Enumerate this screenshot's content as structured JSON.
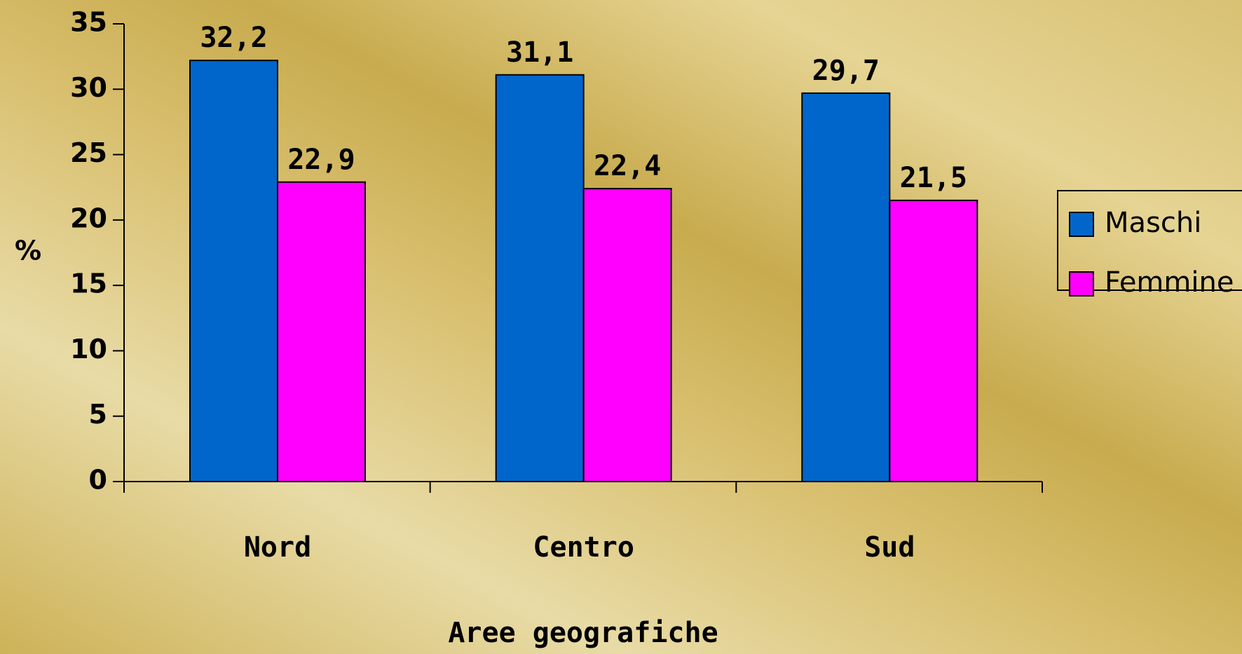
{
  "chart_data": {
    "type": "bar",
    "x_label": "Aree geografiche",
    "y_label": "%",
    "categories": [
      "Nord",
      "Centro",
      "Sud"
    ],
    "series": [
      {
        "name": "Maschi",
        "color": "#0066cc",
        "values": [
          32.2,
          31.1,
          29.7
        ],
        "value_labels": [
          "32,2",
          "31,1",
          "29,7"
        ]
      },
      {
        "name": "Femmine",
        "color": "#ff00ff",
        "values": [
          22.9,
          22.4,
          21.5
        ],
        "value_labels": [
          "22,9",
          "22,4",
          "21,5"
        ]
      }
    ],
    "ylim": [
      0,
      35
    ],
    "yticks": [
      0,
      5,
      10,
      15,
      20,
      25,
      30,
      35
    ],
    "legend": "right"
  }
}
